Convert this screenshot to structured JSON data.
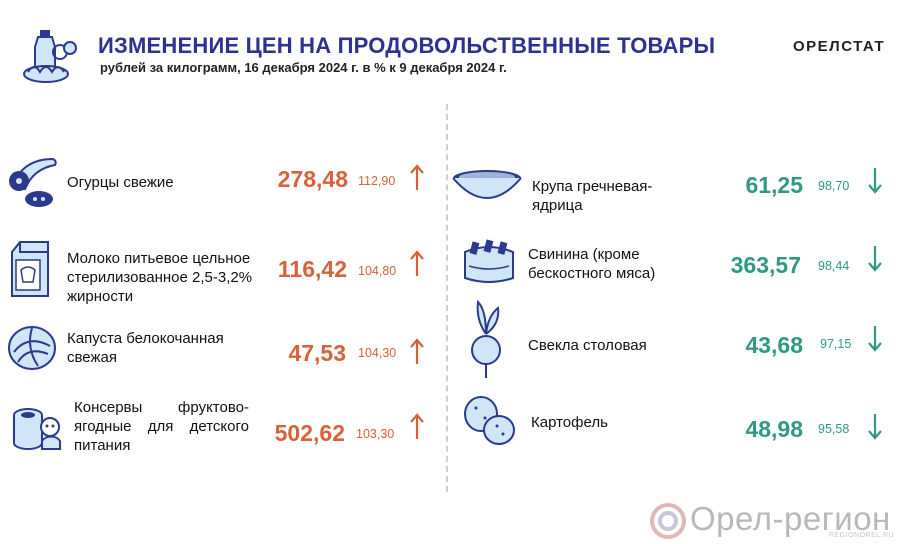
{
  "header": {
    "title": "ИЗМЕНЕНИЕ ЦЕН НА ПРОДОВОЛЬСТВЕННЫЕ ТОВАРЫ",
    "subtitle": "рублей за килограмм, 16 декабря 2024 г. в % к 9 декабря 2024 г.",
    "brand": "ОРЕЛСТАТ"
  },
  "left_items": [
    {
      "icon": "cucumber-icon",
      "name": "Огурцы свежие",
      "price": "278,48",
      "index": "112,90",
      "trend": "up"
    },
    {
      "icon": "milk-carton-icon",
      "name": "Молоко питьевое цельное стерилизованное 2,5-3,2% жирности",
      "price": "116,42",
      "index": "104,80",
      "trend": "up"
    },
    {
      "icon": "cabbage-icon",
      "name": "Капуста белокочанная свежая",
      "price": "47,53",
      "index": "104,30",
      "trend": "up"
    },
    {
      "icon": "baby-food-can-icon",
      "name": "Консервы фруктово-ягодные для детского питания",
      "price": "502,62",
      "index": "103,30",
      "trend": "up"
    }
  ],
  "right_items": [
    {
      "icon": "buckwheat-bowl-icon",
      "name": "Крупа гречневая-ядрица",
      "price": "61,25",
      "index": "98,70",
      "trend": "down"
    },
    {
      "icon": "pork-icon",
      "name": "Свинина (кроме бескостного мяса)",
      "price": "363,57",
      "index": "98,44",
      "trend": "down"
    },
    {
      "icon": "beetroot-icon",
      "name": "Свекла столовая",
      "price": "43,68",
      "index": "97,15",
      "trend": "down"
    },
    {
      "icon": "potato-icon",
      "name": "Картофель",
      "price": "48,98",
      "index": "95,58",
      "trend": "down"
    }
  ],
  "watermark": {
    "text": "Орел-регион",
    "sub": "REGIONOREL.RU"
  },
  "colors": {
    "title": "#2e3192",
    "up": "#d9613a",
    "down": "#2f9a84",
    "icon": "#2b3a8c"
  }
}
